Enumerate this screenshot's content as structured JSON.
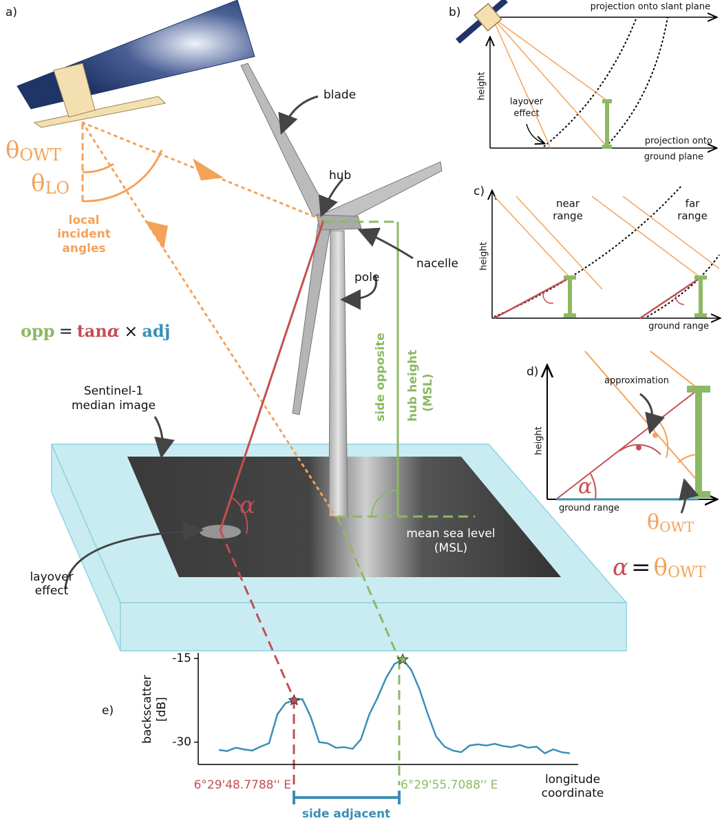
{
  "panel_labels": {
    "a": "a)",
    "b": "b)",
    "c": "c)",
    "d": "d)",
    "e": "e)"
  },
  "panel_a": {
    "theta_owt": {
      "symbol": "θ",
      "sub": "OWT"
    },
    "theta_lo": {
      "symbol": "θ",
      "sub": "LO"
    },
    "local_incident_angles": [
      "local",
      "incident",
      "angles"
    ],
    "blade": "blade",
    "hub": "hub",
    "nacelle": "nacelle",
    "pole": "pole",
    "side_opposite": "side opposite",
    "hub_height": [
      "hub height",
      "(MSL)"
    ],
    "sentinel": [
      "Sentinel-1",
      "median image"
    ],
    "layover_effect": [
      "layover",
      "effect"
    ],
    "mean_sea_level": [
      "mean sea level",
      "(MSL)"
    ],
    "alpha": "α",
    "formula": {
      "opp": "opp",
      "eq": "=",
      "tan": "tan",
      "alpha": "α",
      "times": "×",
      "adj": "adj"
    }
  },
  "panel_b": {
    "slant": "projection onto slant plane",
    "height": "height",
    "layover_effect": [
      "layover",
      "effect"
    ],
    "ground": [
      "projection onto",
      "ground plane"
    ]
  },
  "panel_c": {
    "near_range": [
      "near",
      "range"
    ],
    "far_range": [
      "far",
      "range"
    ],
    "height": "height",
    "ground_range": "ground range"
  },
  "panel_d": {
    "approximation": "approximation",
    "height": "height",
    "ground_range": "ground range",
    "alpha": "α",
    "theta_owt": {
      "symbol": "θ",
      "sub": "OWT"
    },
    "equation": {
      "alpha": "α",
      "eq": "=",
      "symbol": "θ",
      "sub": "OWT"
    }
  },
  "panel_e": {
    "ylabel": [
      "backscatter",
      "[dB]"
    ],
    "xlabel": [
      "longitude",
      "coordinate"
    ],
    "ylim": [
      -34,
      -14
    ],
    "yticks": [
      -15,
      -30
    ],
    "values": [
      -31.4,
      -31.6,
      -31.0,
      -31.3,
      -31.5,
      -30.8,
      -30.2,
      -25.0,
      -23.0,
      -22.5,
      -22.3,
      -25.5,
      -30.0,
      -30.2,
      -31.0,
      -30.9,
      -31.2,
      -29.5,
      -25.0,
      -22.0,
      -18.5,
      -16.0,
      -15.2,
      -17.0,
      -20.5,
      -25.0,
      -29.0,
      -30.8,
      -31.5,
      -31.8,
      -30.6,
      -30.4,
      -30.6,
      -30.3,
      -30.7,
      -30.9,
      -30.5,
      -31.0,
      -30.8,
      -32.0,
      -31.3,
      -31.8,
      -32.0
    ],
    "color": "#3a8fb7",
    "coord_left": "6°29'48.7788'' E",
    "coord_right": "6°29'55.7088'' E",
    "side_adjacent": "side adjacent"
  }
}
